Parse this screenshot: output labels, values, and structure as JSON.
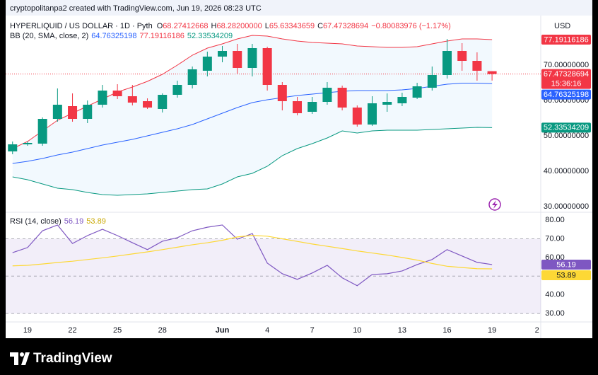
{
  "header": {
    "attribution": "cryptopolitanpa2 created with TradingView.com, Jun 19, 2026 08:23 UTC"
  },
  "footer": {
    "brand": "TradingView"
  },
  "chart_data": {
    "type": "candlestick",
    "title": "HYPERLIQUID / US DOLLAR · 1D · Pyth",
    "currency": "USD",
    "legend": {
      "letters": [
        "O",
        "H",
        "L",
        "C"
      ],
      "high_label": "68.28200000"
    },
    "change_label": "−0.80083976 (−1.17%)",
    "countdown": "15:36:16",
    "up_color": "#089981",
    "down_color": "#f23645",
    "x": [
      0,
      1,
      2,
      3,
      4,
      5,
      6,
      7,
      8,
      9,
      10,
      11,
      12,
      13,
      14,
      15,
      16,
      17,
      18,
      19,
      20,
      21,
      22,
      23,
      24,
      25,
      26,
      27,
      28,
      29,
      30,
      31,
      32
    ],
    "xlim": [
      -0.46,
      35.25
    ],
    "xticks": [
      {
        "value": 1,
        "label": "19"
      },
      {
        "value": 4,
        "label": "22"
      },
      {
        "value": 7,
        "label": "25"
      },
      {
        "value": 10,
        "label": "28"
      },
      {
        "value": 14,
        "label": "Jun"
      },
      {
        "value": 17,
        "label": "4"
      },
      {
        "value": 20,
        "label": "7"
      },
      {
        "value": 23,
        "label": "10"
      },
      {
        "value": 26,
        "label": "13"
      },
      {
        "value": 29,
        "label": "16"
      },
      {
        "value": 32,
        "label": "19"
      },
      {
        "value": 35,
        "label": "2"
      }
    ],
    "open": [
      45.6,
      47.6,
      47.8,
      54.8,
      58.4,
      54.8,
      58.8,
      62.8,
      61.2,
      59.8,
      57.6,
      61.6,
      64.4,
      68.4,
      72.4,
      74.0,
      69.2,
      74.8,
      64.4,
      59.8,
      56.8,
      59.6,
      63.6,
      58.0,
      53.2,
      58.8,
      59.2,
      60.8,
      63.6,
      67.2,
      74.0,
      71.2,
      68.27412668
    ],
    "high": [
      48.4,
      48.4,
      55.2,
      63.4,
      62.0,
      60.0,
      64.4,
      64.6,
      64.4,
      60.6,
      62.0,
      65.6,
      69.6,
      73.8,
      75.4,
      76.0,
      76.0,
      75.2,
      65.2,
      61.0,
      61.0,
      65.2,
      64.2,
      58.6,
      61.2,
      62.0,
      62.2,
      65.0,
      69.6,
      77.4,
      76.2,
      73.6,
      68.282
    ],
    "low": [
      44.8,
      47.2,
      47.2,
      54.0,
      54.0,
      53.6,
      58.0,
      60.4,
      58.6,
      57.6,
      56.6,
      60.8,
      63.4,
      66.8,
      70.8,
      67.6,
      66.8,
      62.8,
      57.2,
      55.8,
      56.2,
      58.8,
      57.2,
      52.6,
      52.8,
      56.8,
      58.4,
      60.4,
      62.8,
      66.2,
      68.4,
      65.6,
      65.63343659
    ],
    "close": [
      47.6,
      48.0,
      54.8,
      58.8,
      54.8,
      58.8,
      62.8,
      61.2,
      59.4,
      58.0,
      61.6,
      64.4,
      68.8,
      72.4,
      74.0,
      69.2,
      74.8,
      64.4,
      59.8,
      56.4,
      59.6,
      63.6,
      58.0,
      53.2,
      59.2,
      59.6,
      61.0,
      64.0,
      67.2,
      74.0,
      71.2,
      68.4,
      67.47328694
    ],
    "ylim": [
      28.4,
      82.8
    ],
    "yticks": [
      {
        "value": 30,
        "label": "30.00000000"
      },
      {
        "value": 40,
        "label": "40.00000000"
      },
      {
        "value": 50,
        "label": "50.00000000"
      },
      {
        "value": 60,
        "label": "60.00000000"
      },
      {
        "value": 70,
        "label": "70.00000000"
      }
    ],
    "grid": false,
    "bb": {
      "title": "BB (20, SMA, close, 2)",
      "series": [
        {
          "color": "#2962ff",
          "values": [
            42.2,
            42.8,
            43.6,
            44.6,
            45.4,
            46.4,
            47.4,
            48.2,
            49.0,
            50.0,
            51.0,
            52.0,
            53.2,
            54.8,
            56.4,
            58.0,
            59.4,
            60.2,
            60.8,
            61.4,
            61.8,
            62.2,
            62.6,
            62.8,
            62.8,
            62.8,
            63.0,
            63.4,
            64.0,
            64.6,
            64.9,
            64.9,
            64.76325198
          ]
        },
        {
          "color": "#f23645",
          "values": [
            46.4,
            48.4,
            51.4,
            54.4,
            56.4,
            58.4,
            60.4,
            62.4,
            63.8,
            65.4,
            67.4,
            70.0,
            72.8,
            74.8,
            76.0,
            77.4,
            78.4,
            78.2,
            77.4,
            76.8,
            76.4,
            76.2,
            76.0,
            75.4,
            75.2,
            75.0,
            75.0,
            75.2,
            76.0,
            76.8,
            77.4,
            77.4,
            77.19116186
          ]
        },
        {
          "color": "#089981",
          "values": [
            38.4,
            37.6,
            36.4,
            35.2,
            34.8,
            34.0,
            33.4,
            33.2,
            33.4,
            33.6,
            34.0,
            34.4,
            34.8,
            35.0,
            36.4,
            38.4,
            39.4,
            41.4,
            44.4,
            46.4,
            47.8,
            49.4,
            51.4,
            50.8,
            51.4,
            51.6,
            51.6,
            51.6,
            51.8,
            52.0,
            52.2,
            52.4,
            52.33534209
          ]
        }
      ]
    },
    "rsi": {
      "type": "line",
      "title": "RSI (14, close)",
      "ylim": [
        25.5,
        84.2
      ],
      "yticks": [
        {
          "value": 30,
          "label": "30.00"
        },
        {
          "value": 40,
          "label": "40.00"
        },
        {
          "value": 50,
          "label": "50.00"
        },
        {
          "value": 60,
          "label": "60.00"
        },
        {
          "value": 70,
          "label": "70.00"
        },
        {
          "value": 80,
          "label": "80.00"
        }
      ],
      "levels": [
        70,
        50,
        30
      ],
      "series": [
        {
          "color": "#7e57c2",
          "values": [
            62.6,
            65.3,
            74.3,
            77.4,
            67.5,
            71.7,
            75.1,
            71.7,
            67.9,
            64.2,
            68.7,
            70.6,
            74.3,
            76.2,
            77.4,
            69.8,
            72.8,
            57.0,
            51.3,
            48.3,
            51.7,
            55.8,
            49.1,
            44.9,
            50.9,
            51.3,
            52.8,
            56.2,
            58.9,
            64.2,
            60.8,
            57.4,
            56.19
          ]
        },
        {
          "color": "#fdd835",
          "values": [
            55.5,
            55.8,
            56.5,
            57.3,
            58.0,
            58.9,
            59.8,
            60.8,
            61.9,
            63.0,
            64.2,
            65.5,
            66.8,
            67.9,
            69.2,
            71.0,
            71.8,
            71.4,
            70.0,
            68.6,
            67.2,
            66.0,
            64.8,
            63.5,
            62.4,
            61.3,
            60.0,
            58.6,
            56.8,
            55.3,
            54.6,
            54.0,
            53.89
          ]
        }
      ]
    }
  }
}
